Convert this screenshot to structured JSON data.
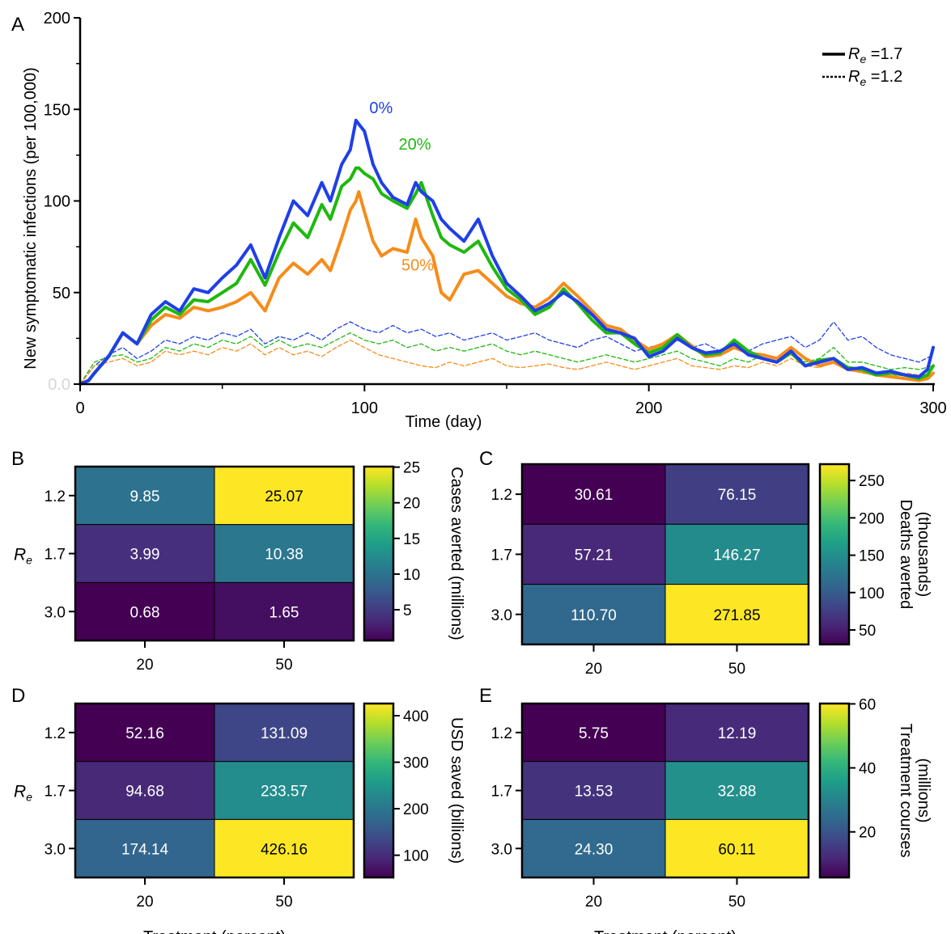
{
  "chart_data": [
    {
      "panel": "A",
      "type": "line",
      "xlabel": "Time (day)",
      "ylabel": "New symptomatic infections (per 100,000)",
      "xlim": [
        0,
        300
      ],
      "ylim": [
        0,
        200
      ],
      "xticks": [
        "0",
        "100",
        "200",
        "300"
      ],
      "yticks": [
        "0.0",
        "50",
        "100",
        "150",
        "200"
      ],
      "grid": false,
      "legend_position": "top-right",
      "legend": [
        {
          "style": "solid",
          "label_main": "R",
          "label_sub": "e",
          "label_rest": " =1.7"
        },
        {
          "style": "dotted",
          "label_main": "R",
          "label_sub": "e",
          "label_rest": " =1.2"
        }
      ],
      "series": [
        {
          "name": "0%",
          "color": "#1f3fe8",
          "style": "solid",
          "label_at": [
            100,
            148
          ],
          "x": [
            0,
            3,
            5,
            10,
            15,
            20,
            25,
            30,
            35,
            40,
            45,
            50,
            55,
            60,
            65,
            70,
            75,
            80,
            85,
            88,
            92,
            95,
            97,
            98,
            100,
            103,
            106,
            110,
            115,
            118,
            120,
            124,
            127,
            130,
            135,
            140,
            145,
            150,
            155,
            160,
            165,
            170,
            175,
            180,
            185,
            190,
            195,
            200,
            205,
            210,
            215,
            220,
            225,
            230,
            235,
            240,
            245,
            250,
            255,
            260,
            265,
            270,
            275,
            280,
            285,
            290,
            295,
            298,
            300
          ],
          "y": [
            0,
            2,
            6,
            15,
            28,
            22,
            38,
            45,
            40,
            52,
            50,
            58,
            65,
            76,
            58,
            80,
            100,
            92,
            110,
            100,
            120,
            128,
            144,
            142,
            138,
            120,
            110,
            102,
            98,
            110,
            105,
            100,
            90,
            85,
            78,
            90,
            70,
            55,
            48,
            40,
            44,
            50,
            45,
            38,
            30,
            28,
            25,
            15,
            18,
            25,
            20,
            17,
            18,
            22,
            16,
            14,
            12,
            18,
            10,
            12,
            14,
            8,
            9,
            6,
            7,
            5,
            4,
            8,
            20
          ]
        },
        {
          "name": "20%",
          "color": "#1fb80f",
          "style": "solid",
          "label_at": [
            112,
            128
          ],
          "x": [
            0,
            3,
            5,
            10,
            15,
            20,
            25,
            30,
            35,
            40,
            45,
            50,
            55,
            60,
            65,
            70,
            75,
            80,
            85,
            88,
            92,
            95,
            97,
            98,
            100,
            103,
            106,
            110,
            115,
            118,
            120,
            124,
            127,
            130,
            135,
            140,
            145,
            150,
            155,
            160,
            165,
            170,
            175,
            180,
            185,
            190,
            195,
            200,
            205,
            210,
            215,
            220,
            225,
            230,
            235,
            240,
            245,
            250,
            255,
            260,
            265,
            270,
            275,
            280,
            285,
            290,
            295,
            298,
            300
          ],
          "y": [
            0,
            2,
            6,
            15,
            28,
            22,
            35,
            42,
            38,
            46,
            45,
            50,
            55,
            68,
            54,
            72,
            88,
            80,
            98,
            90,
            108,
            112,
            118,
            118,
            115,
            112,
            104,
            100,
            96,
            104,
            110,
            92,
            80,
            76,
            72,
            78,
            64,
            52,
            46,
            38,
            42,
            52,
            44,
            35,
            28,
            28,
            22,
            17,
            20,
            27,
            20,
            16,
            17,
            24,
            18,
            14,
            12,
            17,
            10,
            13,
            14,
            9,
            8,
            5,
            6,
            5,
            3,
            5,
            10
          ]
        },
        {
          "name": "50%",
          "color": "#f58c1a",
          "style": "solid",
          "label_at": [
            113,
            62
          ],
          "x": [
            0,
            3,
            5,
            10,
            15,
            20,
            25,
            30,
            35,
            40,
            45,
            50,
            55,
            60,
            65,
            70,
            75,
            80,
            85,
            88,
            92,
            95,
            97,
            98,
            100,
            103,
            106,
            110,
            115,
            118,
            120,
            124,
            127,
            130,
            135,
            140,
            145,
            150,
            155,
            160,
            165,
            170,
            175,
            180,
            185,
            190,
            195,
            200,
            205,
            210,
            215,
            220,
            225,
            230,
            235,
            240,
            245,
            250,
            255,
            260,
            265,
            270,
            275,
            280,
            285,
            290,
            295,
            298,
            300
          ],
          "y": [
            0,
            2,
            6,
            15,
            28,
            22,
            32,
            38,
            36,
            42,
            40,
            42,
            45,
            50,
            40,
            58,
            66,
            60,
            68,
            62,
            80,
            95,
            100,
            105,
            94,
            78,
            70,
            74,
            72,
            90,
            80,
            70,
            50,
            46,
            60,
            62,
            55,
            48,
            44,
            42,
            47,
            55,
            48,
            40,
            32,
            30,
            24,
            19,
            22,
            27,
            21,
            15,
            16,
            20,
            17,
            16,
            14,
            20,
            14,
            10,
            12,
            8,
            7,
            5,
            4,
            3,
            2,
            3,
            6
          ]
        },
        {
          "name": "",
          "color": "#1f3fe8",
          "style": "dotted",
          "x": [
            0,
            5,
            10,
            15,
            20,
            25,
            30,
            35,
            40,
            45,
            50,
            55,
            60,
            65,
            70,
            75,
            80,
            85,
            90,
            95,
            100,
            105,
            110,
            115,
            120,
            125,
            130,
            135,
            140,
            145,
            150,
            155,
            160,
            165,
            170,
            175,
            180,
            185,
            190,
            195,
            200,
            205,
            210,
            215,
            220,
            225,
            230,
            235,
            240,
            245,
            250,
            255,
            260,
            265,
            270,
            275,
            280,
            285,
            290,
            295,
            300
          ],
          "y": [
            0,
            10,
            16,
            20,
            14,
            18,
            24,
            22,
            26,
            24,
            28,
            26,
            30,
            22,
            26,
            24,
            28,
            24,
            30,
            34,
            30,
            28,
            32,
            28,
            30,
            26,
            28,
            24,
            26,
            28,
            24,
            26,
            28,
            24,
            22,
            20,
            24,
            26,
            22,
            18,
            20,
            22,
            24,
            20,
            22,
            18,
            20,
            18,
            22,
            24,
            26,
            20,
            24,
            34,
            24,
            26,
            20,
            16,
            14,
            12,
            16
          ]
        },
        {
          "name": "",
          "color": "#1fb80f",
          "style": "dotted",
          "x": [
            0,
            5,
            10,
            15,
            20,
            25,
            30,
            35,
            40,
            45,
            50,
            55,
            60,
            65,
            70,
            75,
            80,
            85,
            90,
            95,
            100,
            105,
            110,
            115,
            120,
            125,
            130,
            135,
            140,
            145,
            150,
            155,
            160,
            165,
            170,
            175,
            180,
            185,
            190,
            195,
            200,
            205,
            210,
            215,
            220,
            225,
            230,
            235,
            240,
            245,
            250,
            255,
            260,
            265,
            270,
            275,
            280,
            285,
            290,
            295,
            300
          ],
          "y": [
            0,
            12,
            15,
            16,
            12,
            14,
            20,
            18,
            22,
            20,
            24,
            22,
            26,
            20,
            24,
            20,
            22,
            20,
            24,
            28,
            24,
            22,
            24,
            20,
            22,
            18,
            20,
            18,
            20,
            22,
            18,
            16,
            18,
            16,
            14,
            12,
            14,
            16,
            14,
            12,
            14,
            16,
            18,
            14,
            12,
            10,
            14,
            12,
            16,
            14,
            18,
            12,
            14,
            20,
            12,
            12,
            10,
            8,
            9,
            8,
            10
          ]
        },
        {
          "name": "",
          "color": "#f58c1a",
          "style": "dotted",
          "x": [
            0,
            5,
            10,
            15,
            20,
            25,
            30,
            35,
            40,
            45,
            50,
            55,
            60,
            65,
            70,
            75,
            80,
            85,
            90,
            95,
            100,
            105,
            110,
            115,
            120,
            125,
            130,
            135,
            140,
            145,
            150,
            155,
            160,
            165,
            170,
            175,
            180,
            185,
            190,
            195,
            200,
            205,
            210,
            215,
            220,
            225,
            230,
            235,
            240,
            245,
            250,
            255,
            260,
            265,
            270,
            275,
            280,
            285,
            290,
            295,
            300
          ],
          "y": [
            0,
            10,
            12,
            14,
            10,
            12,
            18,
            16,
            18,
            16,
            20,
            18,
            22,
            16,
            20,
            16,
            18,
            15,
            20,
            24,
            20,
            16,
            14,
            12,
            10,
            9,
            12,
            10,
            12,
            14,
            10,
            9,
            10,
            11,
            9,
            8,
            10,
            12,
            10,
            8,
            10,
            12,
            14,
            10,
            9,
            8,
            10,
            9,
            12,
            10,
            14,
            10,
            9,
            12,
            8,
            6,
            5,
            4,
            6,
            5,
            6
          ]
        }
      ]
    },
    {
      "panel": "B",
      "type": "heatmap",
      "ylabel_main": "R",
      "ylabel_sub": "e",
      "rows": [
        "1.2",
        "1.7",
        "3.0"
      ],
      "cols": [
        "20",
        "50"
      ],
      "values": [
        [
          9.85,
          25.07
        ],
        [
          3.99,
          10.38
        ],
        [
          0.68,
          1.65
        ]
      ],
      "labels": [
        [
          "9.85",
          "25.07"
        ],
        [
          "3.99",
          "10.38"
        ],
        [
          "0.68",
          "1.65"
        ]
      ],
      "colorbar": {
        "label": "Cases averted (millions)",
        "min": 0.68,
        "max": 25.07,
        "ticks": [
          5,
          10,
          15,
          20,
          25
        ],
        "tick_labels": [
          "5",
          "10",
          "15",
          "20",
          "25"
        ]
      }
    },
    {
      "panel": "C",
      "type": "heatmap",
      "rows": [
        "1.2",
        "1.7",
        "3.0"
      ],
      "cols": [
        "20",
        "50"
      ],
      "values": [
        [
          30.61,
          76.15
        ],
        [
          57.21,
          146.27
        ],
        [
          110.7,
          271.85
        ]
      ],
      "labels": [
        [
          "30.61",
          "76.15"
        ],
        [
          "57.21",
          "146.27"
        ],
        [
          "110.70",
          "271.85"
        ]
      ],
      "colorbar": {
        "label": "Deaths averted",
        "label2": "(thousands)",
        "min": 30.61,
        "max": 271.85,
        "ticks": [
          50,
          100,
          150,
          200,
          250
        ],
        "tick_labels": [
          "50",
          "100",
          "150",
          "200",
          "250"
        ]
      }
    },
    {
      "panel": "D",
      "type": "heatmap",
      "ylabel_main": "R",
      "ylabel_sub": "e",
      "xlabel": "Treatment (percent)",
      "rows": [
        "1.2",
        "1.7",
        "3.0"
      ],
      "cols": [
        "20",
        "50"
      ],
      "values": [
        [
          52.16,
          131.09
        ],
        [
          94.68,
          233.57
        ],
        [
          174.14,
          426.16
        ]
      ],
      "labels": [
        [
          "52.16",
          "131.09"
        ],
        [
          "94.68",
          "233.57"
        ],
        [
          "174.14",
          "426.16"
        ]
      ],
      "colorbar": {
        "label": "USD saved (billions)",
        "min": 52.16,
        "max": 426.16,
        "ticks": [
          100,
          200,
          300,
          400
        ],
        "tick_labels": [
          "100",
          "200",
          "300",
          "400"
        ]
      }
    },
    {
      "panel": "E",
      "type": "heatmap",
      "xlabel": "Treatment (percent)",
      "rows": [
        "1.2",
        "1.7",
        "3.0"
      ],
      "cols": [
        "20",
        "50"
      ],
      "values": [
        [
          5.75,
          12.19
        ],
        [
          13.53,
          32.88
        ],
        [
          24.3,
          60.11
        ]
      ],
      "labels": [
        [
          "5.75",
          "12.19"
        ],
        [
          "13.53",
          "32.88"
        ],
        [
          "24.30",
          "60.11"
        ]
      ],
      "colorbar": {
        "label": "Treatment courses",
        "label2": "(millions)",
        "min": 5.75,
        "max": 60.11,
        "ticks": [
          20,
          40,
          60
        ],
        "tick_labels": [
          "20",
          "40",
          "60"
        ]
      }
    }
  ],
  "colors": {
    "viridis": [
      "#440154",
      "#482878",
      "#3e4989",
      "#31688e",
      "#26828e",
      "#1f9e89",
      "#35b779",
      "#6ece58",
      "#b5de2b",
      "#fde725"
    ]
  }
}
